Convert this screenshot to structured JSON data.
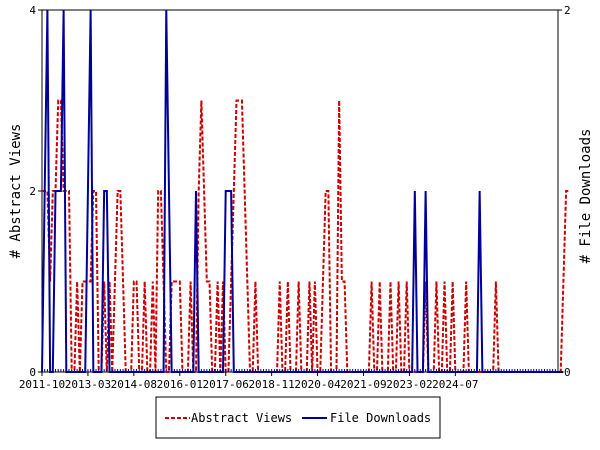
{
  "chart_data": {
    "type": "line",
    "title": "",
    "xlabel": "",
    "ylabel": "# Abstract Views",
    "y2label": "# File Downloads",
    "x_tick_labels": [
      "2011-10",
      "2013-03",
      "2014-08",
      "2016-01",
      "2017-06",
      "2018-11",
      "2020-04",
      "2021-09",
      "2023-02",
      "2024-07"
    ],
    "ylim": [
      0,
      4
    ],
    "y_ticks": [
      "0",
      "2",
      "4"
    ],
    "y2lim": [
      0,
      2
    ],
    "y2_ticks": [
      "0",
      "2"
    ],
    "grid": false,
    "legend_position": "bottom",
    "num_months": 192,
    "series": [
      {
        "name": "Abstract Views",
        "axis": "left",
        "color": "#cc0000",
        "style": "dashed",
        "values": [
          2,
          2,
          2,
          1,
          2,
          2,
          3,
          3,
          2,
          2,
          2,
          0,
          0,
          1,
          0,
          1,
          1,
          1,
          1,
          2,
          2,
          0,
          0,
          1,
          0,
          1,
          0,
          1,
          2,
          2,
          1,
          0,
          0,
          0,
          1,
          1,
          0,
          0,
          1,
          0,
          0,
          1,
          0,
          2,
          2,
          1,
          0,
          0,
          1,
          1,
          1,
          1,
          0,
          0,
          0,
          1,
          0,
          0,
          2,
          3,
          2,
          1,
          1,
          0,
          0,
          1,
          0,
          1,
          0,
          0,
          1,
          2,
          3,
          3,
          3,
          2,
          1,
          0,
          0,
          1,
          0,
          0,
          0,
          0,
          0,
          0,
          0,
          0,
          1,
          0,
          0,
          1,
          0,
          0,
          0,
          1,
          0,
          0,
          0,
          1,
          0,
          1,
          0,
          0,
          1,
          2,
          2,
          0,
          0,
          0,
          3,
          1,
          1,
          0,
          0,
          0,
          0,
          0,
          0,
          0,
          0,
          0,
          1,
          0,
          0,
          1,
          0,
          0,
          0,
          1,
          0,
          0,
          1,
          0,
          0,
          1,
          0,
          0,
          0,
          0,
          0,
          0,
          1,
          0,
          0,
          0,
          1,
          0,
          0,
          1,
          0,
          0,
          1,
          0,
          0,
          0,
          0,
          1,
          0,
          0,
          0,
          0,
          0,
          0,
          0,
          0,
          0,
          0,
          1,
          0,
          0,
          0,
          0,
          0,
          0,
          0,
          0,
          0,
          0,
          0,
          0,
          0,
          0,
          0,
          0,
          0,
          0,
          0,
          0,
          0,
          0,
          0,
          0,
          1,
          2,
          2
        ]
      },
      {
        "name": "File Downloads",
        "axis": "right",
        "color": "#000099",
        "style": "solid",
        "values": [
          0,
          1,
          2,
          0,
          0,
          1,
          1,
          1,
          2,
          0,
          0,
          0,
          0,
          0,
          0,
          0,
          0,
          1,
          2,
          0,
          0,
          0,
          0,
          1,
          1,
          0,
          0,
          0,
          0,
          0,
          0,
          0,
          0,
          0,
          0,
          0,
          0,
          0,
          0,
          0,
          0,
          0,
          0,
          0,
          0,
          0,
          2,
          1,
          0,
          0,
          0,
          0,
          0,
          0,
          0,
          0,
          0,
          1,
          0,
          0,
          0,
          0,
          0,
          0,
          0,
          0,
          0,
          0,
          1,
          1,
          1,
          0,
          0,
          0,
          0,
          0,
          0,
          0,
          0,
          0,
          0,
          0,
          0,
          0,
          0,
          0,
          0,
          0,
          0,
          0,
          0,
          0,
          0,
          0,
          0,
          0,
          0,
          0,
          0,
          0,
          0,
          0,
          0,
          0,
          0,
          0,
          0,
          0,
          0,
          0,
          0,
          0,
          0,
          0,
          0,
          0,
          0,
          0,
          0,
          0,
          0,
          0,
          0,
          0,
          0,
          0,
          0,
          0,
          0,
          0,
          0,
          0,
          0,
          0,
          0,
          0,
          0,
          0,
          1,
          0,
          0,
          0,
          1,
          0,
          0,
          0,
          0,
          0,
          0,
          0,
          0,
          0,
          0,
          0,
          0,
          0,
          0,
          0,
          0,
          0,
          0,
          0,
          1,
          0,
          0,
          0,
          0,
          0,
          0,
          0,
          0,
          0,
          0,
          0,
          0,
          0,
          0,
          0,
          0,
          0,
          0,
          0,
          0,
          0,
          0,
          0,
          0,
          0,
          0,
          0,
          0,
          0,
          0,
          0
        ]
      }
    ]
  }
}
